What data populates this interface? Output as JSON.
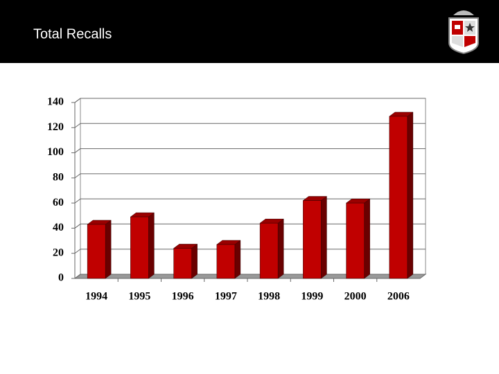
{
  "chart_data": {
    "type": "bar3d",
    "title": "Total Recalls",
    "categories": [
      "1994",
      "1995",
      "1996",
      "1997",
      "1998",
      "1999",
      "2000",
      "2006"
    ],
    "values": [
      43,
      49,
      24,
      27,
      44,
      62,
      60,
      129
    ],
    "color": "#c00000",
    "ylim": [
      0,
      140
    ],
    "yticks": [
      0,
      20,
      40,
      60,
      80,
      100,
      120,
      140
    ],
    "grid": true
  }
}
